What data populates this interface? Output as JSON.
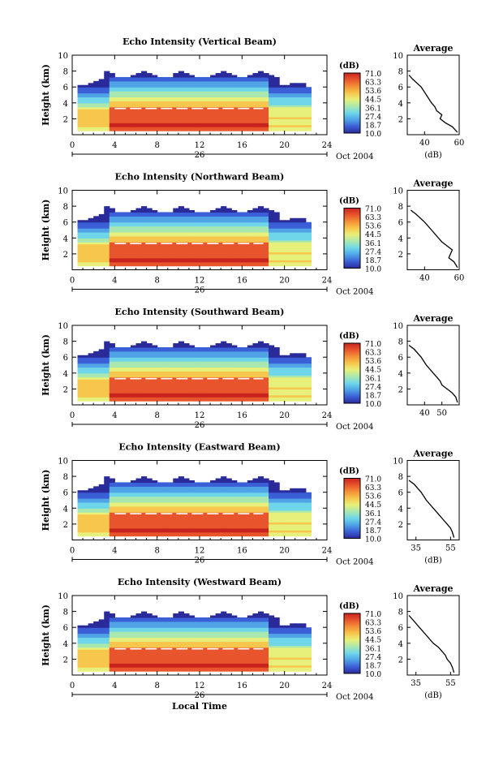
{
  "figure": {
    "x_axis_title": "Local Time",
    "cbar_unit": "(dB)",
    "cbar_ticks": [
      "71.0",
      "63.3",
      "53.6",
      "44.5",
      "36.1",
      "27.4",
      "18.7",
      "10.0"
    ],
    "day_label": "26",
    "month_label": "Oct 2004",
    "avg_title": "Average",
    "avg_xlabel": "(dB)"
  },
  "colors": {
    "scale": [
      "#2a2a9a",
      "#3b5fd6",
      "#4fa3e6",
      "#6fd6ea",
      "#a8e8b0",
      "#e6f07a",
      "#f7c64c",
      "#f29038",
      "#e8542c",
      "#c8231f"
    ]
  },
  "chart_data": [
    {
      "type": "heatmap",
      "title": "Echo Intensity (Vertical Beam)",
      "xlabel": "",
      "ylabel": "Height (km)",
      "xlim": [
        0,
        24
      ],
      "ylim": [
        0,
        10
      ],
      "x_ticks": [
        0,
        4,
        8,
        12,
        16,
        20,
        24
      ],
      "y_ticks": [
        2,
        4,
        6,
        8,
        10
      ],
      "colorbar": {
        "label": "(dB)",
        "range": [
          10.0,
          71.0
        ]
      },
      "average_profile": {
        "title": "Average",
        "xlabel": "(dB)",
        "x_ticks": [
          40,
          60
        ],
        "xlim": [
          30,
          60
        ],
        "ylim": [
          0,
          10
        ],
        "height_km": [
          0.3,
          1,
          1.5,
          2,
          2.5,
          3,
          3.5,
          4,
          5,
          6,
          7,
          7.5
        ],
        "db": [
          59,
          56,
          52,
          49,
          50,
          47,
          46,
          44,
          41,
          38,
          33,
          31
        ]
      }
    },
    {
      "type": "heatmap",
      "title": "Echo Intensity (Northward Beam)",
      "xlabel": "",
      "ylabel": "Height (km)",
      "xlim": [
        0,
        24
      ],
      "ylim": [
        0,
        10
      ],
      "x_ticks": [
        0,
        4,
        8,
        12,
        16,
        20,
        24
      ],
      "y_ticks": [
        2,
        4,
        6,
        8,
        10
      ],
      "colorbar": {
        "label": "(dB)",
        "range": [
          10.0,
          71.0
        ]
      },
      "average_profile": {
        "title": "Average",
        "xlabel": "",
        "x_ticks": [
          40,
          60
        ],
        "xlim": [
          30,
          60
        ],
        "ylim": [
          0,
          10
        ],
        "height_km": [
          0.3,
          1,
          1.5,
          2,
          2.5,
          3,
          3.5,
          4,
          5,
          6,
          7,
          7.5
        ],
        "db": [
          59,
          57,
          54,
          55,
          56,
          53,
          50,
          48,
          44,
          40,
          35,
          32
        ]
      }
    },
    {
      "type": "heatmap",
      "title": "Echo Intensity (Southward Beam)",
      "xlabel": "",
      "ylabel": "Height (km)",
      "xlim": [
        0,
        24
      ],
      "ylim": [
        0,
        10
      ],
      "x_ticks": [
        0,
        4,
        8,
        12,
        16,
        20,
        24
      ],
      "y_ticks": [
        2,
        4,
        6,
        8,
        10
      ],
      "colorbar": {
        "label": "(dB)",
        "range": [
          10.0,
          71.0
        ]
      },
      "average_profile": {
        "title": "Average",
        "xlabel": "",
        "x_ticks": [
          40,
          50
        ],
        "xlim": [
          30,
          60
        ],
        "ylim": [
          0,
          10
        ],
        "height_km": [
          0.3,
          1,
          1.5,
          2,
          2.5,
          3,
          3.5,
          4,
          5,
          6,
          7,
          7.5
        ],
        "db": [
          59,
          58,
          56,
          53,
          50,
          49,
          47,
          45,
          41,
          38,
          34,
          31
        ]
      }
    },
    {
      "type": "heatmap",
      "title": "Echo Intensity (Eastward Beam)",
      "xlabel": "",
      "ylabel": "Height (km)",
      "xlim": [
        0,
        24
      ],
      "ylim": [
        0,
        10
      ],
      "x_ticks": [
        0,
        4,
        8,
        12,
        16,
        20,
        24
      ],
      "y_ticks": [
        2,
        4,
        6,
        8,
        10
      ],
      "colorbar": {
        "label": "(dB)",
        "range": [
          10.0,
          71.0
        ]
      },
      "average_profile": {
        "title": "Average",
        "xlabel": "(dB)",
        "x_ticks": [
          35,
          55
        ],
        "xlim": [
          30,
          60
        ],
        "ylim": [
          0,
          10
        ],
        "height_km": [
          0.3,
          1,
          1.5,
          2,
          2.5,
          3,
          3.5,
          4,
          5,
          6,
          7,
          7.5
        ],
        "db": [
          57,
          56,
          55,
          53,
          51,
          49,
          47,
          45,
          41,
          38,
          34,
          31
        ]
      }
    },
    {
      "type": "heatmap",
      "title": "Echo Intensity (Westward Beam)",
      "xlabel": "Local Time",
      "ylabel": "Height (km)",
      "xlim": [
        0,
        24
      ],
      "ylim": [
        0,
        10
      ],
      "x_ticks": [
        0,
        4,
        8,
        12,
        16,
        20,
        24
      ],
      "y_ticks": [
        2,
        4,
        6,
        8,
        10
      ],
      "colorbar": {
        "label": "(dB)",
        "range": [
          10.0,
          71.0
        ]
      },
      "average_profile": {
        "title": "Average",
        "xlabel": "(dB)",
        "x_ticks": [
          35,
          55
        ],
        "xlim": [
          30,
          60
        ],
        "ylim": [
          0,
          10
        ],
        "height_km": [
          0.3,
          1,
          1.5,
          2,
          2.5,
          3,
          3.5,
          4,
          5,
          6,
          7,
          7.5
        ],
        "db": [
          57,
          56,
          55,
          53,
          52,
          50,
          48,
          45,
          41,
          37,
          33,
          31
        ]
      }
    }
  ]
}
